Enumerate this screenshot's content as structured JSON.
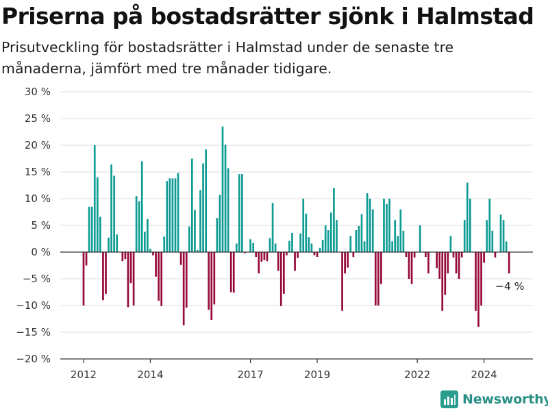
{
  "title": "Priserna på bostadsrätter sjönk i Halmstad",
  "subtitle": "Prisutveckling för bostadsrätter i Halmstad under de senaste tre månaderna, jämfört med tre månader tidigare.",
  "brand": {
    "name": "Newsworthy",
    "color": "#2a9d8f"
  },
  "colors": {
    "positive": "#0e9c94",
    "negative": "#970a3c",
    "grid": "#dddddd",
    "axis": "#333333"
  },
  "chart_data": {
    "type": "bar",
    "xlabel": "",
    "ylabel": "",
    "ylim": [
      -20,
      30
    ],
    "y_ticks": [
      30,
      25,
      20,
      15,
      10,
      5,
      0,
      -5,
      -10,
      -15,
      -20
    ],
    "y_tick_labels": [
      "30 %",
      "25 %",
      "20 %",
      "15 %",
      "10 %",
      "5 %",
      "0 %",
      "−5 %",
      "−10 %",
      "−15 %",
      "−20 %"
    ],
    "x_ticks": [
      "2012",
      "2014",
      "2017",
      "2019",
      "2022",
      "2024"
    ],
    "x_tick_month_index": [
      0,
      24,
      60,
      84,
      120,
      144
    ],
    "grid": true,
    "legend": "none",
    "start": "2012-01",
    "annotation": {
      "text": "−4 %",
      "month_index": 155,
      "value": -4
    },
    "values": [
      -10,
      -2.5,
      8.5,
      8.5,
      20,
      14,
      6.6,
      -9,
      -7.8,
      2.7,
      16.4,
      14.3,
      3.3,
      0,
      -1.7,
      -1.3,
      -10.3,
      -5.8,
      -10,
      10.5,
      9.5,
      17,
      3.8,
      6.2,
      0.6,
      -0.6,
      -4.6,
      -9.1,
      -10.1,
      2.9,
      13.3,
      13.8,
      13.8,
      13.8,
      14.8,
      -2.4,
      -13.7,
      -10.4,
      4.8,
      17.5,
      7.9,
      0.4,
      11.6,
      16.6,
      19.2,
      -10.8,
      -12.7,
      -9.8,
      6.4,
      10.7,
      23.5,
      20.1,
      15.7,
      -7.5,
      -7.6,
      1.6,
      14.6,
      14.6,
      -0.2,
      0,
      2.4,
      1.7,
      -0.9,
      -4,
      -1.8,
      -1.5,
      -1.7,
      2.6,
      9.2,
      1.6,
      -3.5,
      -10.1,
      -7.8,
      -0.6,
      2.1,
      3.6,
      -3.5,
      -1.1,
      3.5,
      10,
      7.2,
      2.8,
      1.6,
      -0.6,
      -0.9,
      0.8,
      2.3,
      5,
      4.1,
      7.4,
      12,
      6,
      0,
      -11,
      -4,
      -2.9,
      3,
      -0.9,
      4.1,
      4.9,
      7.1,
      2,
      11,
      10,
      8,
      -10,
      -10,
      -6,
      10,
      9,
      10,
      2,
      6,
      3,
      8,
      4,
      -0.9,
      -5,
      -6,
      -1,
      0,
      5,
      0,
      -0.9,
      -4,
      0,
      0,
      -3,
      -5,
      -11,
      -8,
      -4,
      3,
      -1,
      -4,
      -5,
      -1,
      6,
      13,
      10,
      0,
      -11,
      -14,
      -10,
      -2,
      6,
      10,
      4,
      -1,
      0,
      7,
      6,
      2,
      -4
    ]
  }
}
